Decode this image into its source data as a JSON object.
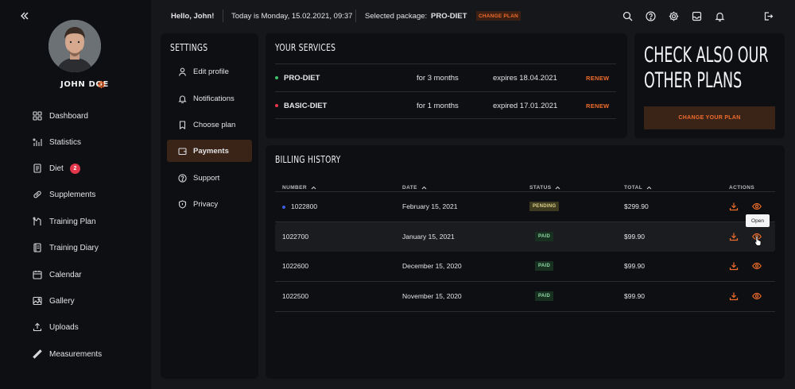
{
  "user": {
    "name": "JOHN DOE"
  },
  "sidebar": {
    "items": [
      {
        "label": "Dashboard",
        "icon": "dashboard-icon"
      },
      {
        "label": "Statistics",
        "icon": "statistics-icon"
      },
      {
        "label": "Diet",
        "icon": "diet-icon",
        "badge": "2"
      },
      {
        "label": "Supplements",
        "icon": "pill-icon"
      },
      {
        "label": "Training Plan",
        "icon": "training-plan-icon"
      },
      {
        "label": "Training Diary",
        "icon": "diary-icon"
      },
      {
        "label": "Calendar",
        "icon": "calendar-icon"
      },
      {
        "label": "Gallery",
        "icon": "gallery-icon"
      },
      {
        "label": "Uploads",
        "icon": "upload-icon"
      },
      {
        "label": "Measurements",
        "icon": "ruler-icon"
      }
    ]
  },
  "topbar": {
    "greeting": "Hello, John!",
    "today": "Today is Monday, 15.02.2021, 09:37",
    "selected_label": "Selected package:",
    "selected_package": "PRO-DIET",
    "change_plan": "CHANGE PLAN"
  },
  "settings": {
    "title": "SETTINGS",
    "items": [
      {
        "label": "Edit profile",
        "icon": "user-icon"
      },
      {
        "label": "Notifications",
        "icon": "bell-icon"
      },
      {
        "label": "Choose plan",
        "icon": "bookmark-icon"
      },
      {
        "label": "Payments",
        "icon": "wallet-icon",
        "active": true
      },
      {
        "label": "Support",
        "icon": "help-icon"
      },
      {
        "label": "Privacy",
        "icon": "shield-icon"
      }
    ]
  },
  "services": {
    "title": "YOUR SERVICES",
    "rows": [
      {
        "name": "PRO-DIET",
        "duration": "for 3 months",
        "expires": "expires 18.04.2021",
        "action": "RENEW",
        "dot_color": "#3fbf6a"
      },
      {
        "name": "BASIC-DIET",
        "duration": "for 1 months",
        "expires": "expired 17.01.2021",
        "action": "RENEW",
        "dot_color": "#e2374b"
      }
    ]
  },
  "promo": {
    "line1": "CHECK ALSO OUR",
    "line2": "OTHER PLANS",
    "button": "CHANGE YOUR PLAN"
  },
  "billing": {
    "title": "BILLING HISTORY",
    "columns": {
      "number": "NUMBER",
      "date": "DATE",
      "status": "STATUS",
      "total": "TOTAL",
      "actions": "ACTIONS"
    },
    "rows": [
      {
        "number": "1022800",
        "date": "February 15, 2021",
        "status": "PENDING",
        "total": "$299.90"
      },
      {
        "number": "1022700",
        "date": "January 15, 2021",
        "status": "PAID",
        "total": "$99.90"
      },
      {
        "number": "1022600",
        "date": "December 15, 2020",
        "status": "PAID",
        "total": "$99.90"
      },
      {
        "number": "1022500",
        "date": "November 15, 2020",
        "status": "PAID",
        "total": "$99.90"
      }
    ],
    "tooltip": "Open"
  },
  "colors": {
    "accent": "#ef6c2b",
    "background": "#16171b",
    "panel": "#0e0f12"
  }
}
